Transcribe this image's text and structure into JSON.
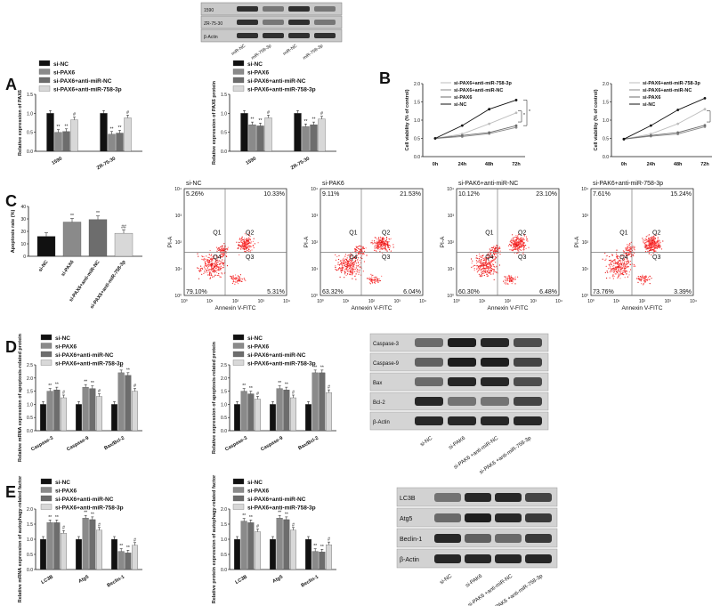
{
  "panel_labels": {
    "A": "A",
    "B": "B",
    "C": "C",
    "D": "D",
    "E": "E"
  },
  "colors": {
    "black": "#111111",
    "gray1": "#8a8a8a",
    "gray2": "#6d6d6d",
    "gray3": "#d8d8d8",
    "dot": "#e02020"
  },
  "legend4": [
    "si-NC",
    "si-PAX6",
    "si-PAX6+anti-miR-NC",
    "si-PAX6+anti-miR-758-3p"
  ],
  "top_blot": {
    "rows": [
      "1590",
      "ZR-75-30",
      "β-Actin"
    ],
    "lanes": [
      "miR-NC",
      "miR-758-3p",
      "miR-NC",
      "miR-758-3p"
    ]
  },
  "panelA": {
    "chart1": {
      "ylabel": "Relative expression of PAX6",
      "categories": [
        "1590",
        "ZR-75-30"
      ],
      "series": [
        {
          "values": [
            1.0,
            1.0
          ]
        },
        {
          "values": [
            0.5,
            0.45
          ]
        },
        {
          "values": [
            0.52,
            0.48
          ]
        },
        {
          "values": [
            0.83,
            0.88
          ]
        }
      ],
      "marks": [
        [
          "",
          "**",
          "**",
          "#"
        ],
        [
          "",
          "**",
          "**",
          "#"
        ]
      ],
      "ticks": [
        "0.0",
        "0.5",
        "1.0",
        "1.5"
      ]
    },
    "chart2": {
      "ylabel": "Relative expression of PAX6 protein",
      "categories": [
        "1590",
        "ZR-75-30"
      ],
      "series": [
        {
          "values": [
            1.0,
            1.0
          ]
        },
        {
          "values": [
            0.7,
            0.65
          ]
        },
        {
          "values": [
            0.67,
            0.7
          ]
        },
        {
          "values": [
            0.88,
            0.85
          ]
        }
      ],
      "marks": [
        [
          "",
          "**",
          "**",
          "#"
        ],
        [
          "",
          "**",
          "**",
          "#"
        ]
      ],
      "ticks": [
        "0.0",
        "0.5",
        "1.0",
        "1.5"
      ]
    }
  },
  "panelB": {
    "ylabel": "Cell viability (% of control)",
    "x": [
      "0h",
      "24h",
      "48h",
      "72h"
    ],
    "yticks": [
      "0.0",
      "0.5",
      "1.0",
      "1.5",
      "2.0"
    ],
    "legend": [
      "si-PAX6+anti-miR-758-3p",
      "si-PAX6+anti-miR-NC",
      "si-PAX6",
      "si-NC"
    ],
    "chart1": {
      "series": [
        {
          "values": [
            0.5,
            0.62,
            0.9,
            1.2
          ]
        },
        {
          "values": [
            0.5,
            0.55,
            0.63,
            0.8
          ]
        },
        {
          "values": [
            0.5,
            0.58,
            0.66,
            0.85
          ]
        },
        {
          "values": [
            0.5,
            0.85,
            1.3,
            1.55
          ]
        }
      ]
    },
    "chart2": {
      "series": [
        {
          "values": [
            0.48,
            0.62,
            0.9,
            1.3
          ]
        },
        {
          "values": [
            0.48,
            0.56,
            0.62,
            0.82
          ]
        },
        {
          "values": [
            0.48,
            0.58,
            0.66,
            0.86
          ]
        },
        {
          "values": [
            0.48,
            0.85,
            1.28,
            1.6
          ]
        }
      ]
    }
  },
  "panelC": {
    "ylabel": "Apoptosis rate (%)",
    "yticks": [
      "0",
      "10",
      "20",
      "30",
      "40"
    ],
    "categories": [
      "si-NC",
      "si-PAX6",
      "si-PAX6+anti-miR-NC",
      "si-PAX6+anti-miR-758-3p"
    ],
    "values": [
      16,
      27.5,
      29.5,
      18.5
    ],
    "marks": [
      "",
      "**",
      "**",
      "##"
    ],
    "flow": [
      {
        "title": "si-NC",
        "ul": "5.26%",
        "ur": "10.33%",
        "ll": "79.10%",
        "lr": "5.31%"
      },
      {
        "title": "si-PAK6",
        "ul": "9.11%",
        "ur": "21.53%",
        "ll": "63.32%",
        "lr": "6.04%"
      },
      {
        "title": "si-PAK6+anti-miR-NC",
        "ul": "10.12%",
        "ur": "23.10%",
        "ll": "60.30%",
        "lr": "6.48%"
      },
      {
        "title": "si-PAK6+anti-miR-758-3p",
        "ul": "7.61%",
        "ur": "15.24%",
        "ll": "73.76%",
        "lr": "3.39%"
      }
    ],
    "q": [
      "Q1",
      "Q2",
      "Q4",
      "Q3"
    ],
    "xlabel": "Annexin V-FITC",
    "ylabel_flow": "PI-A",
    "xticks": [
      "10⁰",
      "10¹",
      "10²",
      "10³",
      "10⁴"
    ]
  },
  "panelD": {
    "chart1": {
      "ylabel": "Relative mRNA expression of apoptosis-related protein",
      "categories": [
        "Caspase-3",
        "Caspase-9",
        "Bax/Bcl-2"
      ],
      "series": [
        {
          "values": [
            1,
            1,
            1
          ]
        },
        {
          "values": [
            1.5,
            1.65,
            2.2
          ]
        },
        {
          "values": [
            1.55,
            1.6,
            2.1
          ]
        },
        {
          "values": [
            1.25,
            1.3,
            1.5
          ]
        }
      ],
      "ticks": [
        "0.0",
        "0.5",
        "1.0",
        "1.5",
        "2.0",
        "2.5"
      ]
    },
    "chart2": {
      "ylabel": "Relative expression of apoptosis-related protein",
      "categories": [
        "Caspase-3",
        "Caspase-9",
        "Bax/Bcl-2"
      ],
      "series": [
        {
          "values": [
            1,
            1,
            1
          ]
        },
        {
          "values": [
            1.5,
            1.6,
            2.2
          ]
        },
        {
          "values": [
            1.4,
            1.55,
            2.2
          ]
        },
        {
          "values": [
            1.2,
            1.25,
            1.45
          ]
        }
      ],
      "ticks": [
        "0.0",
        "0.5",
        "1.0",
        "1.5",
        "2.0",
        "2.5"
      ]
    },
    "blot_rows": [
      "Caspase-3",
      "Caspase-9",
      "Bax",
      "Bcl-2",
      "β-Actin"
    ],
    "lanes": [
      "si-NC",
      "si-PAK6",
      "si-PAK6 +anti-miR-NC",
      "si-PAK6 +anti-miR-758-3p"
    ]
  },
  "panelE": {
    "chart1": {
      "ylabel": "Relative mRNA expression of autophagy-related factor",
      "categories": [
        "LC3B",
        "Atg5",
        "Beclin-1"
      ],
      "series": [
        {
          "values": [
            1,
            1,
            1
          ]
        },
        {
          "values": [
            1.55,
            1.7,
            0.6
          ]
        },
        {
          "values": [
            1.55,
            1.65,
            0.55
          ]
        },
        {
          "values": [
            1.2,
            1.3,
            0.8
          ]
        }
      ],
      "ticks": [
        "0.0",
        "0.5",
        "1.0",
        "1.5",
        "2.0"
      ]
    },
    "chart2": {
      "ylabel": "Relative protein expression of autophagy-related factor",
      "categories": [
        "LC3B",
        "Atg5",
        "Beclin-1"
      ],
      "series": [
        {
          "values": [
            1,
            1,
            1
          ]
        },
        {
          "values": [
            1.6,
            1.7,
            0.6
          ]
        },
        {
          "values": [
            1.55,
            1.65,
            0.58
          ]
        },
        {
          "values": [
            1.25,
            1.3,
            0.82
          ]
        }
      ],
      "ticks": [
        "0.0",
        "0.5",
        "1.0",
        "1.5",
        "2.0"
      ]
    },
    "blot_rows": [
      "LC3B",
      "Atg5",
      "Beclin-1",
      "β-Actin"
    ],
    "lanes": [
      "si-NC",
      "si-PAK6",
      "si-PAK6 +anti-miR-NC",
      "si-PAK6 +anti-miR-758-3p"
    ]
  }
}
